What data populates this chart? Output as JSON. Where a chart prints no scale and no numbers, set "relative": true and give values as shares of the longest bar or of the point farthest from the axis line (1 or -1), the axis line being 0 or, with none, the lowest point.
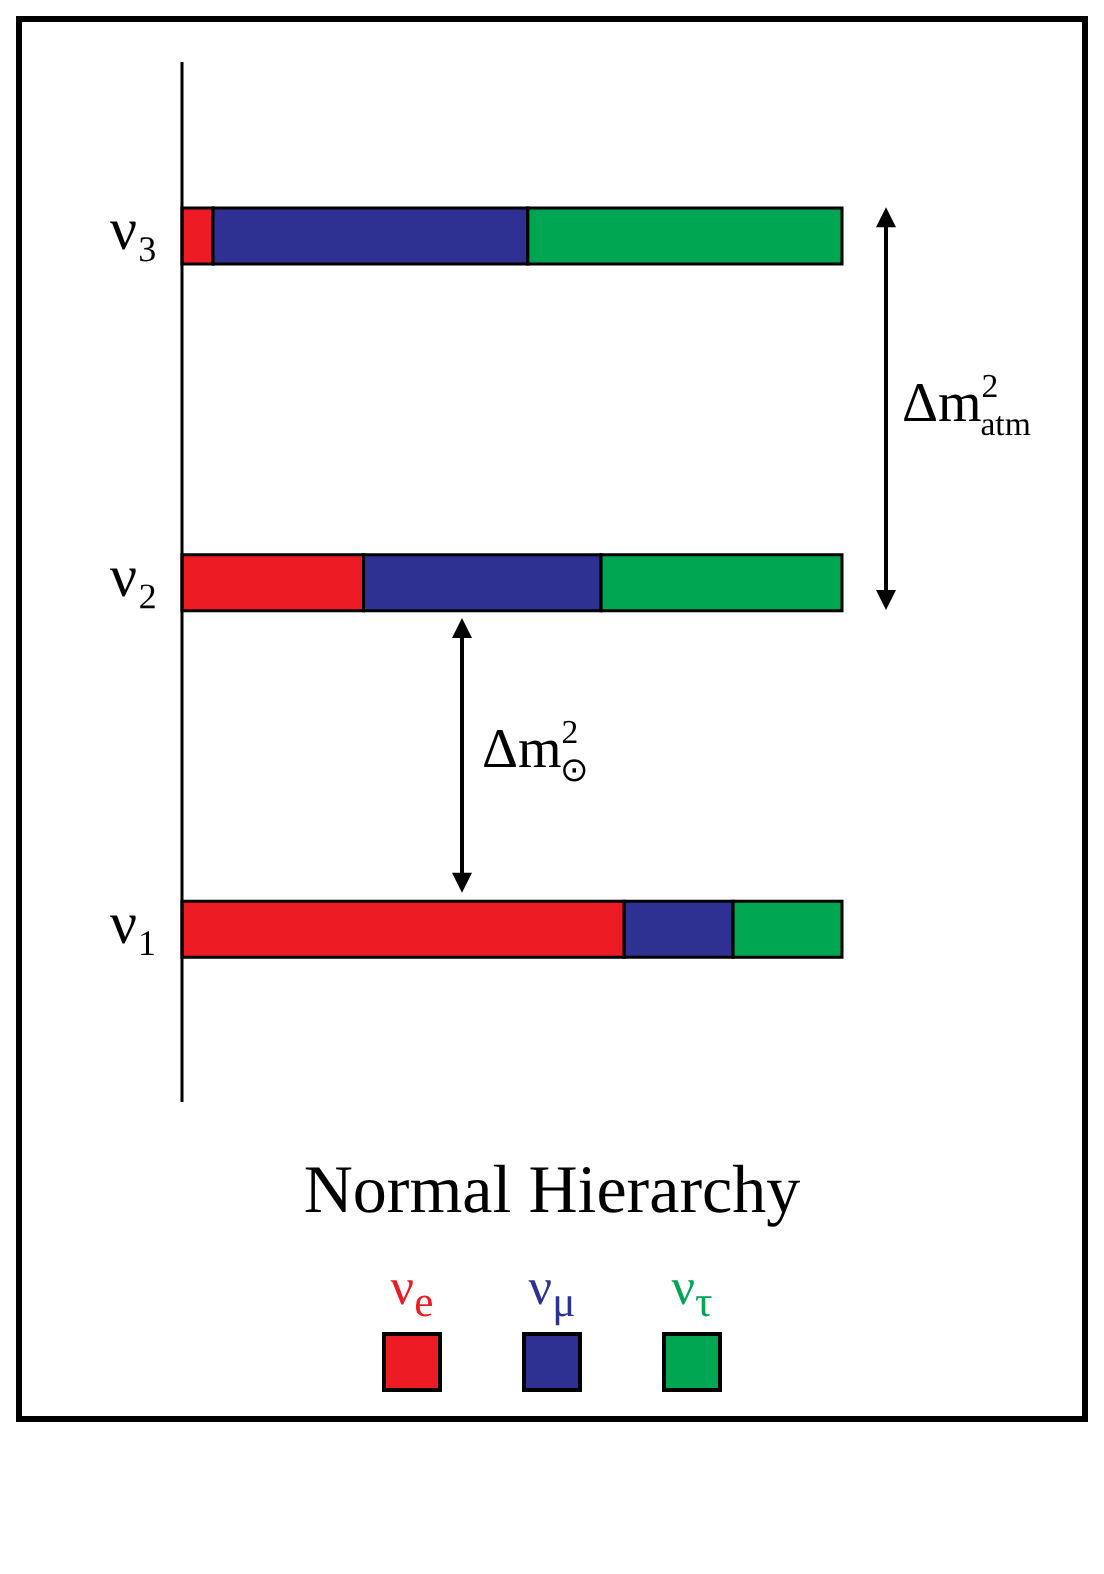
{
  "chart_data": {
    "type": "bar",
    "orientation": "horizontal",
    "stacked": true,
    "relative": true,
    "categories": [
      "ν₃",
      "ν₂",
      "ν₁"
    ],
    "series": [
      {
        "name": "ν$_{e}$",
        "color": "#ed1c24",
        "values": [
          0.047,
          0.275,
          0.67
        ]
      },
      {
        "name": "ν$_{μ}$",
        "color": "#2e3192",
        "values": [
          0.477,
          0.36,
          0.165
        ]
      },
      {
        "name": "ν$_{τ}$",
        "color": "#00a651",
        "values": [
          0.476,
          0.365,
          0.165
        ]
      }
    ],
    "xlabel": "Normal Hierarchy",
    "annotations": [
      "Δm$^{2}$$_{atm}$",
      "Δm$^{2}$$_{⊙}$"
    ],
    "legend": "bottom",
    "grid": false
  }
}
